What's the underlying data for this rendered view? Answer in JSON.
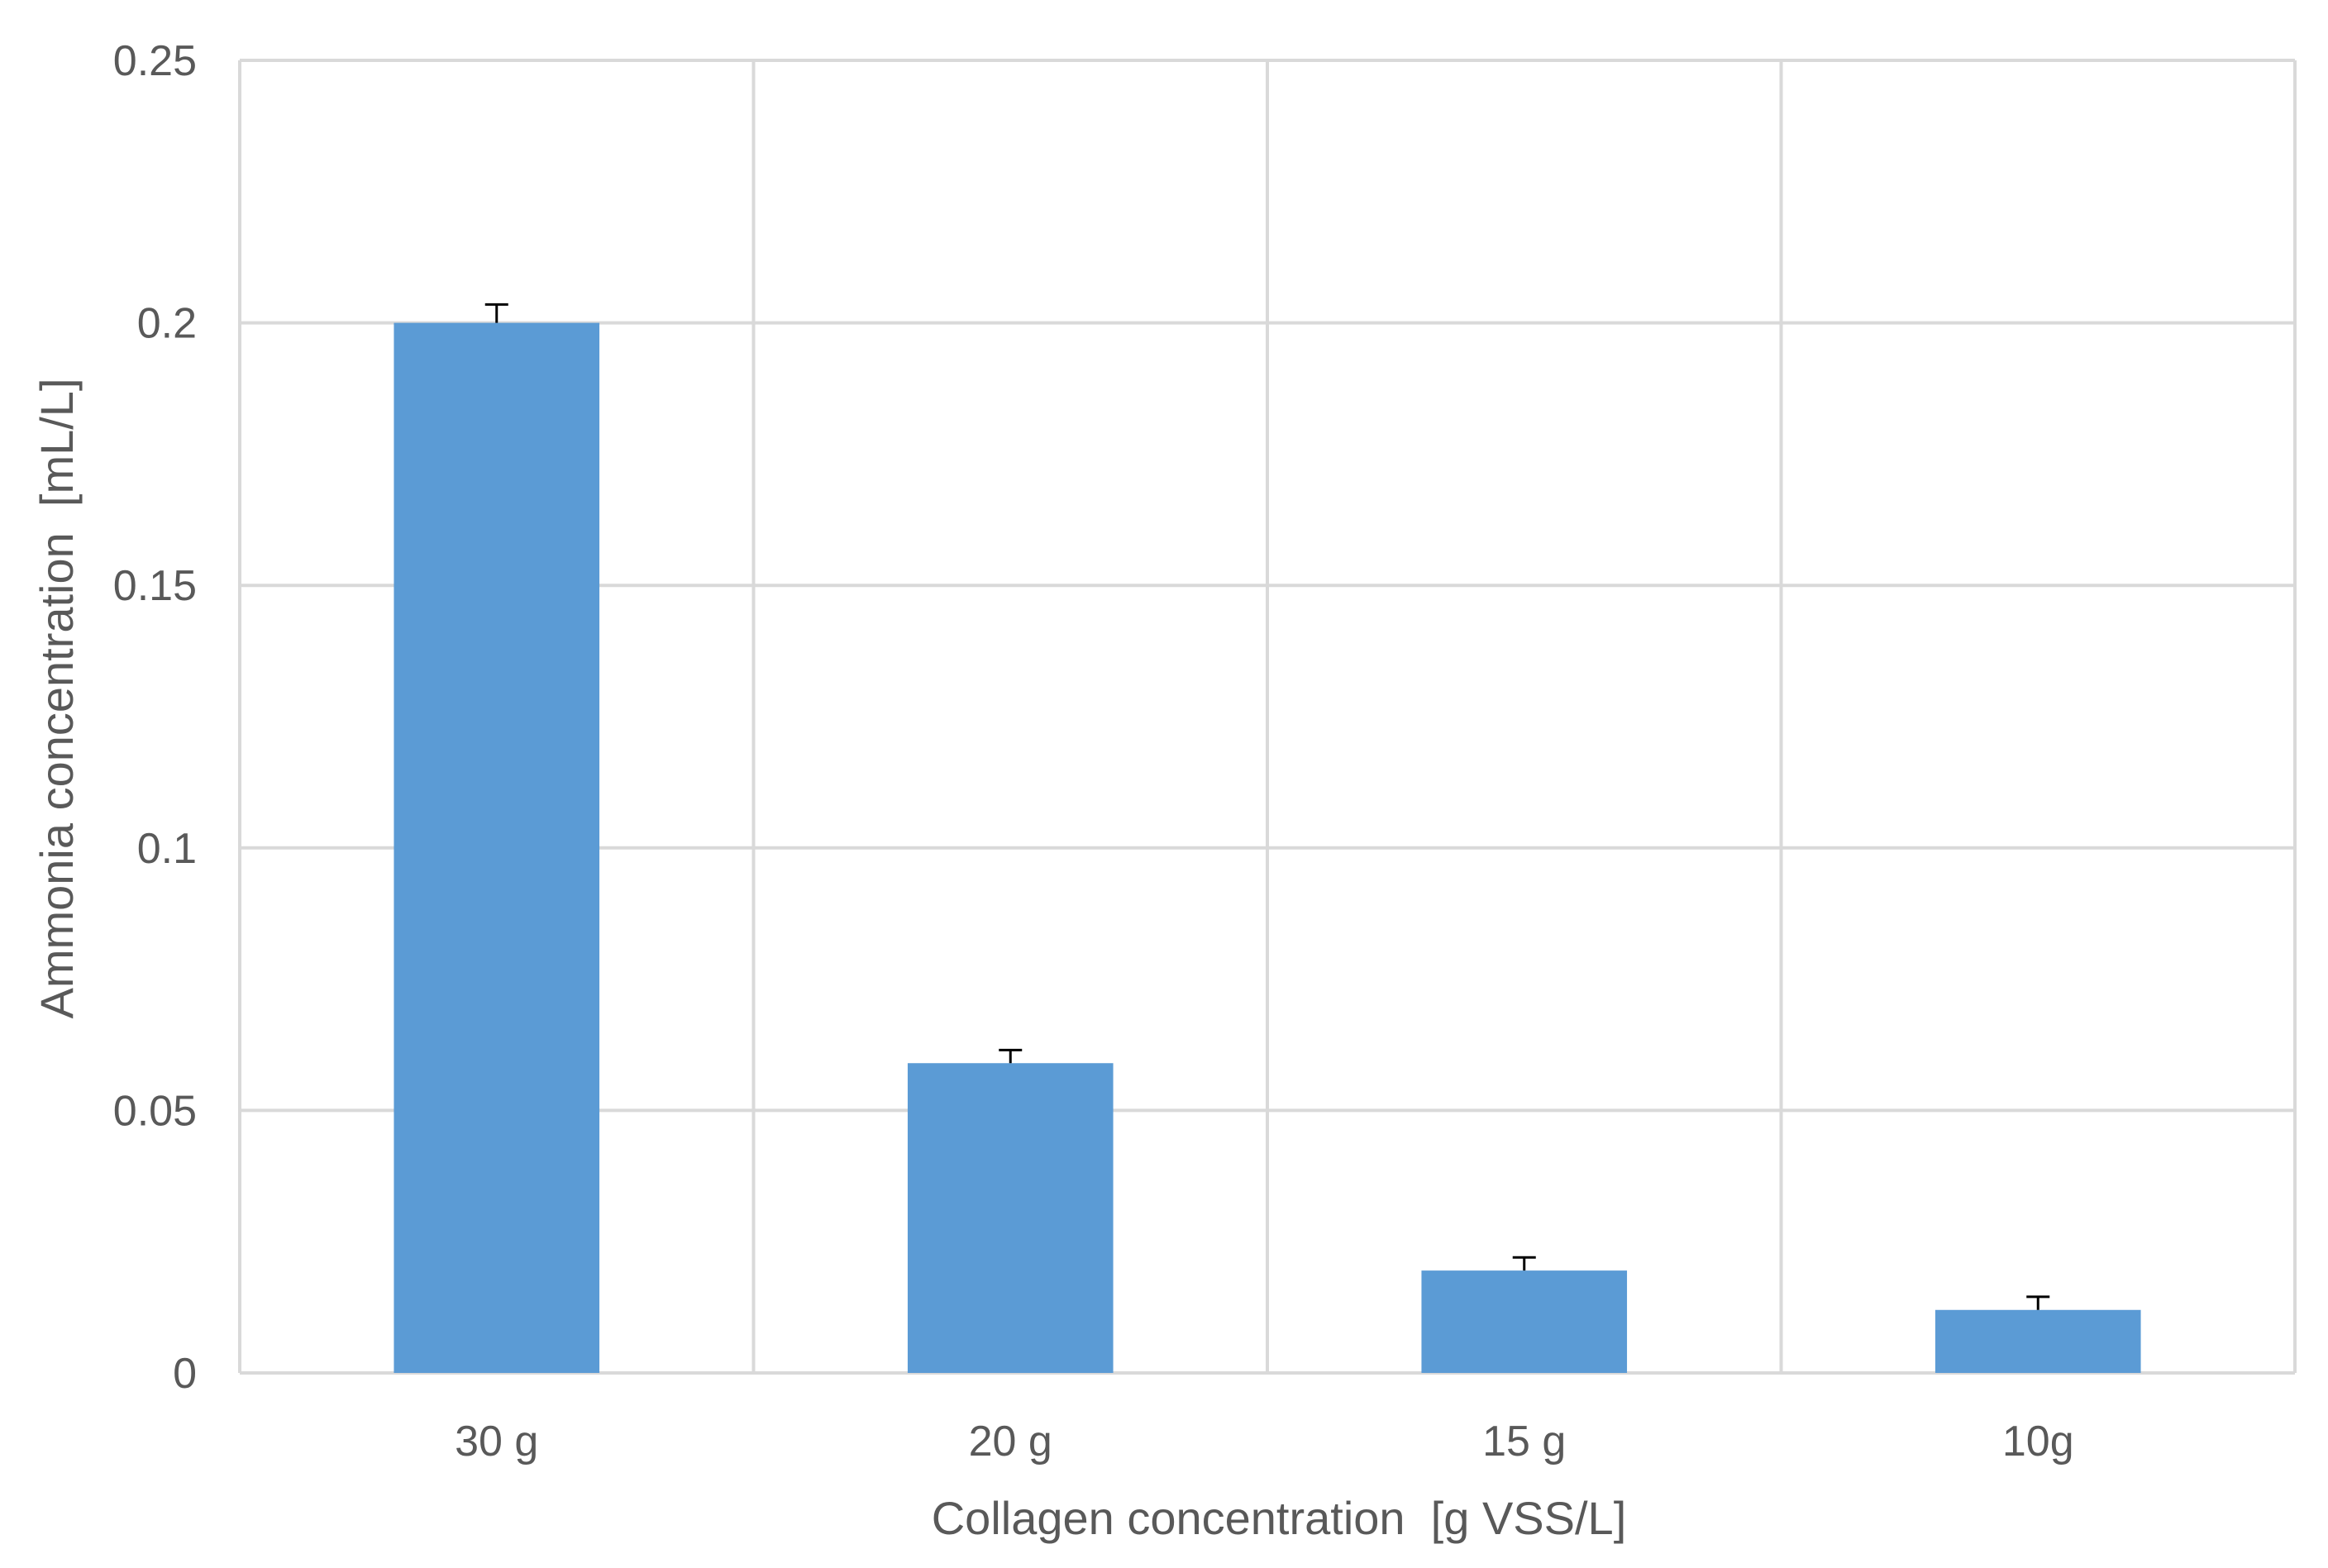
{
  "chart_data": {
    "type": "bar",
    "title": "",
    "xlabel": "Collagen concentration  [g VSS/L]",
    "ylabel": "Ammonia concentration  [mL/L]",
    "categories": [
      "30 g",
      "20 g",
      "15 g",
      "10g"
    ],
    "values": [
      0.2,
      0.059,
      0.0195,
      0.012
    ],
    "errors": [
      0.0035,
      0.0025,
      0.0025,
      0.0025
    ],
    "ylim": [
      0,
      0.25
    ],
    "yticks": [
      0,
      0.05,
      0.1,
      0.15,
      0.2,
      0.25
    ],
    "ytick_labels": [
      "0",
      "0.05",
      "0.1",
      "0.15",
      "0.2",
      "0.25"
    ],
    "grid": true,
    "legend": "none",
    "bar_color": "#5b9bd5",
    "grid_color": "#d9d9d9",
    "text_color": "#595959"
  }
}
